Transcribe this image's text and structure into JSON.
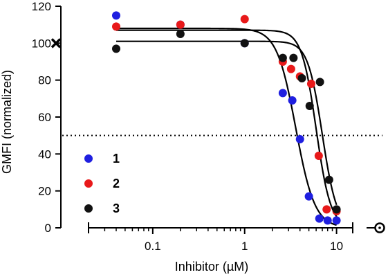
{
  "chart_data": {
    "type": "scatter",
    "title": "",
    "xlabel": "Inhibitor (µM)",
    "ylabel": "GMFI (normalized)",
    "x_scale": "log",
    "xlim": [
      0.02,
      15
    ],
    "ylim": [
      0,
      120
    ],
    "x_ticks": [
      0.1,
      1,
      10
    ],
    "x_tick_labels": [
      "0.1",
      "1",
      "10"
    ],
    "y_ticks": [
      0,
      20,
      40,
      60,
      80,
      100,
      120
    ],
    "y_tick_labels": [
      "0",
      "20",
      "40",
      "60",
      "80",
      "100",
      "120"
    ],
    "reference_line": {
      "y": 50,
      "style": "dotted"
    },
    "axis_markers": {
      "y_axis_cross_at": 100,
      "x_axis_end_circle": true
    },
    "grid": false,
    "legend_position": "lower-left",
    "series": [
      {
        "name": "1",
        "color": "#1f1fe0",
        "points": [
          [
            0.04,
            115
          ],
          [
            0.2,
            110
          ],
          [
            1,
            100
          ],
          [
            2.6,
            73
          ],
          [
            3.3,
            69
          ],
          [
            4.0,
            48
          ],
          [
            5.0,
            17
          ],
          [
            6.5,
            5
          ],
          [
            8.0,
            4
          ],
          [
            10,
            4
          ]
        ],
        "fit": {
          "top": 108,
          "bottom": 0,
          "ic50": 3.6,
          "hill": -4.2
        }
      },
      {
        "name": "2",
        "color": "#e8191a",
        "points": [
          [
            0.04,
            109
          ],
          [
            0.2,
            110
          ],
          [
            1,
            113
          ],
          [
            2.6,
            90
          ],
          [
            3.2,
            86
          ],
          [
            4.0,
            82
          ],
          [
            5.3,
            78
          ],
          [
            6.4,
            39
          ],
          [
            7.8,
            10
          ],
          [
            10,
            9
          ]
        ],
        "fit": {
          "top": 107,
          "bottom": 0,
          "ic50": 6.0,
          "hill": -5.5
        }
      },
      {
        "name": "3",
        "color": "#111111",
        "points": [
          [
            0.04,
            97
          ],
          [
            0.2,
            105
          ],
          [
            1,
            100
          ],
          [
            2.6,
            92
          ],
          [
            3.4,
            92
          ],
          [
            4.2,
            81
          ],
          [
            5.1,
            66
          ],
          [
            6.6,
            79
          ],
          [
            8.3,
            26
          ],
          [
            10,
            10
          ]
        ],
        "fit": {
          "top": 101,
          "bottom": 0,
          "ic50": 7.0,
          "hill": -5.5
        }
      }
    ],
    "legend_entries": [
      "1",
      "2",
      "3"
    ]
  }
}
